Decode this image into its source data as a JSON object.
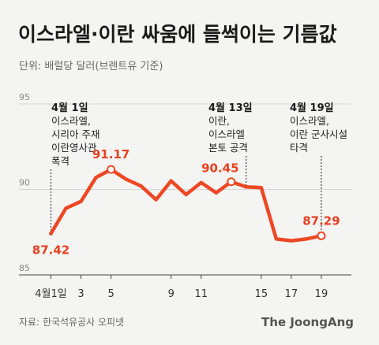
{
  "title": "이스라엘·이란 싸움에 들썩이는 기름값",
  "unit": "단위: 배럴당 달러(브렌트유 기준)",
  "source": "자료: 한국석유공사 오피넷",
  "brand": "The JoongAng",
  "colors": {
    "line": "#ee4723",
    "accent_label": "#e8401f",
    "axis": "#888888",
    "grid": "#d6d6d6",
    "background": "#f4f4f2"
  },
  "chart_data": {
    "type": "line",
    "title": "이스라엘·이란 싸움에 들썩이는 기름값",
    "ylabel": "단위: 배럴당 달러(브렌트유 기준)",
    "xlabel": "",
    "ylim": [
      85,
      95
    ],
    "yticks": [
      85,
      90,
      95
    ],
    "x_range": [
      0.5,
      21
    ],
    "x_ticks": [
      {
        "x": 1,
        "label": "4월1일"
      },
      {
        "x": 3,
        "label": "3"
      },
      {
        "x": 5,
        "label": "5"
      },
      {
        "x": 9,
        "label": "9"
      },
      {
        "x": 11,
        "label": "11"
      },
      {
        "x": 15,
        "label": "15"
      },
      {
        "x": 17,
        "label": "17"
      },
      {
        "x": 19,
        "label": "19"
      }
    ],
    "grid": true,
    "series": [
      {
        "x": [
          1,
          2,
          3,
          4,
          5,
          6,
          7,
          8,
          9,
          10,
          11,
          12,
          13,
          14,
          15,
          16,
          17,
          18,
          19
        ],
        "values": [
          87.42,
          88.9,
          89.3,
          90.7,
          91.17,
          90.6,
          90.2,
          89.4,
          90.5,
          89.7,
          90.4,
          89.8,
          90.45,
          90.15,
          90.1,
          87.1,
          87.0,
          87.1,
          87.29
        ]
      }
    ],
    "data_labels": [
      {
        "x": 1,
        "label": "87.42"
      },
      {
        "x": 5,
        "label": "91.17"
      },
      {
        "x": 13,
        "label": "90.45"
      },
      {
        "x": 19,
        "label": "87.29"
      }
    ],
    "annotations": [
      {
        "x": 1,
        "title": "4월 1일",
        "lines": [
          "이스라엘,",
          "시리아 주재",
          "이란영사관",
          "폭격"
        ]
      },
      {
        "x": 14,
        "title": "4월 13일",
        "lines": [
          "이란,",
          "이스라엘",
          "본토 공격"
        ]
      },
      {
        "x": 19,
        "title": "4월 19일",
        "lines": [
          "이스라엘,",
          "이란 군사시설",
          "타격"
        ]
      }
    ]
  }
}
